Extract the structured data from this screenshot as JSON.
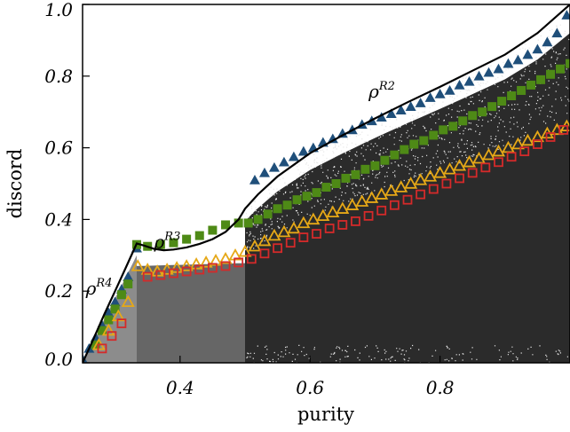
{
  "chart_data": {
    "type": "scatter",
    "xlabel": "purity",
    "ylabel": "discord",
    "xlim": [
      0.25,
      1.0
    ],
    "ylim": [
      0.0,
      1.0
    ],
    "x_ticks": [
      "0.4",
      "0.6",
      "0.8"
    ],
    "x_tick_values": [
      0.4,
      0.6,
      0.8
    ],
    "y_ticks": [
      "0.0",
      "0.2",
      "0.4",
      "0.6",
      "0.8",
      "1.0"
    ],
    "y_tick_values": [
      0.0,
      0.2,
      0.4,
      0.6,
      0.8,
      1.0
    ],
    "shaded_regions": [
      {
        "x_from": 0.25,
        "x_to": 0.3333,
        "color": "#8c8c8c"
      },
      {
        "x_from": 0.3333,
        "x_to": 0.5,
        "color": "#666666"
      },
      {
        "x_from": 0.5,
        "x_to": 1.0,
        "color": "#2b2b2b"
      }
    ],
    "annotations": [
      {
        "base": "ρ",
        "sup": "R2",
        "x": 0.69,
        "y": 0.74
      },
      {
        "base": "ρ",
        "sup": "R3",
        "x": 0.36,
        "y": 0.32
      },
      {
        "base": "ρ",
        "sup": "R4",
        "x": 0.255,
        "y": 0.19
      }
    ],
    "boundary_curve": {
      "color": "#000000",
      "x": [
        0.25,
        0.2667,
        0.2833,
        0.3,
        0.3167,
        0.3333,
        0.345,
        0.36,
        0.375,
        0.39,
        0.41,
        0.43,
        0.45,
        0.47,
        0.49,
        0.5,
        0.52,
        0.55,
        0.6,
        0.65,
        0.7,
        0.75,
        0.8,
        0.85,
        0.9,
        0.95,
        1.0
      ],
      "y": [
        0.0,
        0.066,
        0.135,
        0.2,
        0.266,
        0.333,
        0.327,
        0.318,
        0.314,
        0.316,
        0.322,
        0.332,
        0.345,
        0.365,
        0.4,
        0.43,
        0.47,
        0.52,
        0.585,
        0.635,
        0.682,
        0.727,
        0.77,
        0.815,
        0.86,
        0.92,
        1.0
      ]
    },
    "series": [
      {
        "marker": "triangle-filled",
        "color": "#1f4f7a",
        "x": [
          0.25,
          0.26,
          0.27,
          0.28,
          0.29,
          0.3,
          0.31,
          0.32,
          0.3333,
          0.515,
          0.53,
          0.545,
          0.56,
          0.575,
          0.59,
          0.605,
          0.62,
          0.635,
          0.65,
          0.665,
          0.68,
          0.695,
          0.71,
          0.725,
          0.74,
          0.755,
          0.77,
          0.785,
          0.8,
          0.815,
          0.83,
          0.845,
          0.86,
          0.875,
          0.89,
          0.905,
          0.92,
          0.935,
          0.95,
          0.965,
          0.98,
          0.995
        ],
        "y": [
          0.01,
          0.04,
          0.07,
          0.105,
          0.14,
          0.17,
          0.205,
          0.24,
          0.32,
          0.51,
          0.53,
          0.545,
          0.56,
          0.575,
          0.59,
          0.6,
          0.615,
          0.625,
          0.64,
          0.65,
          0.665,
          0.675,
          0.685,
          0.695,
          0.705,
          0.715,
          0.725,
          0.74,
          0.75,
          0.76,
          0.775,
          0.785,
          0.8,
          0.81,
          0.82,
          0.835,
          0.845,
          0.86,
          0.875,
          0.895,
          0.92,
          0.97
        ]
      },
      {
        "marker": "square-filled",
        "color": "#4e8a16",
        "x": [
          0.27,
          0.28,
          0.29,
          0.3,
          0.31,
          0.32,
          0.3333,
          0.35,
          0.37,
          0.39,
          0.41,
          0.43,
          0.45,
          0.47,
          0.49,
          0.505,
          0.52,
          0.535,
          0.55,
          0.565,
          0.58,
          0.595,
          0.61,
          0.625,
          0.64,
          0.655,
          0.67,
          0.685,
          0.7,
          0.715,
          0.73,
          0.745,
          0.76,
          0.775,
          0.79,
          0.805,
          0.82,
          0.835,
          0.85,
          0.865,
          0.88,
          0.895,
          0.91,
          0.925,
          0.94,
          0.955,
          0.97,
          0.985,
          1.0
        ],
        "y": [
          0.05,
          0.09,
          0.12,
          0.15,
          0.19,
          0.22,
          0.33,
          0.325,
          0.33,
          0.335,
          0.345,
          0.355,
          0.37,
          0.385,
          0.39,
          0.39,
          0.4,
          0.415,
          0.43,
          0.44,
          0.455,
          0.465,
          0.475,
          0.49,
          0.5,
          0.515,
          0.525,
          0.54,
          0.55,
          0.565,
          0.58,
          0.595,
          0.61,
          0.62,
          0.635,
          0.65,
          0.66,
          0.675,
          0.69,
          0.7,
          0.715,
          0.73,
          0.745,
          0.76,
          0.775,
          0.79,
          0.805,
          0.82,
          0.835
        ]
      },
      {
        "marker": "triangle-open",
        "color": "#e6a817",
        "x": [
          0.275,
          0.29,
          0.305,
          0.32,
          0.335,
          0.35,
          0.365,
          0.38,
          0.395,
          0.41,
          0.425,
          0.44,
          0.455,
          0.47,
          0.485,
          0.5,
          0.515,
          0.53,
          0.545,
          0.56,
          0.575,
          0.59,
          0.605,
          0.62,
          0.635,
          0.65,
          0.665,
          0.68,
          0.695,
          0.71,
          0.725,
          0.74,
          0.755,
          0.77,
          0.785,
          0.8,
          0.815,
          0.83,
          0.845,
          0.86,
          0.875,
          0.89,
          0.905,
          0.92,
          0.935,
          0.95,
          0.965,
          0.98,
          0.995
        ],
        "y": [
          0.05,
          0.09,
          0.13,
          0.17,
          0.27,
          0.26,
          0.255,
          0.26,
          0.265,
          0.27,
          0.275,
          0.28,
          0.285,
          0.29,
          0.3,
          0.31,
          0.325,
          0.34,
          0.355,
          0.365,
          0.375,
          0.39,
          0.4,
          0.41,
          0.42,
          0.43,
          0.44,
          0.45,
          0.46,
          0.47,
          0.48,
          0.49,
          0.5,
          0.51,
          0.52,
          0.53,
          0.54,
          0.55,
          0.56,
          0.57,
          0.58,
          0.59,
          0.6,
          0.61,
          0.62,
          0.63,
          0.64,
          0.65,
          0.66
        ]
      },
      {
        "marker": "square-open",
        "color": "#d42a2a",
        "x": [
          0.28,
          0.295,
          0.31,
          0.35,
          0.37,
          0.39,
          0.41,
          0.43,
          0.45,
          0.47,
          0.49,
          0.51,
          0.53,
          0.55,
          0.57,
          0.59,
          0.61,
          0.63,
          0.65,
          0.67,
          0.69,
          0.71,
          0.73,
          0.75,
          0.77,
          0.79,
          0.81,
          0.83,
          0.85,
          0.87,
          0.89,
          0.91,
          0.93,
          0.95,
          0.97,
          0.99
        ],
        "y": [
          0.04,
          0.075,
          0.11,
          0.24,
          0.245,
          0.25,
          0.255,
          0.26,
          0.265,
          0.27,
          0.28,
          0.29,
          0.305,
          0.32,
          0.335,
          0.35,
          0.36,
          0.375,
          0.385,
          0.395,
          0.41,
          0.425,
          0.44,
          0.455,
          0.47,
          0.485,
          0.5,
          0.515,
          0.53,
          0.545,
          0.56,
          0.575,
          0.59,
          0.61,
          0.63,
          0.65
        ]
      }
    ]
  }
}
